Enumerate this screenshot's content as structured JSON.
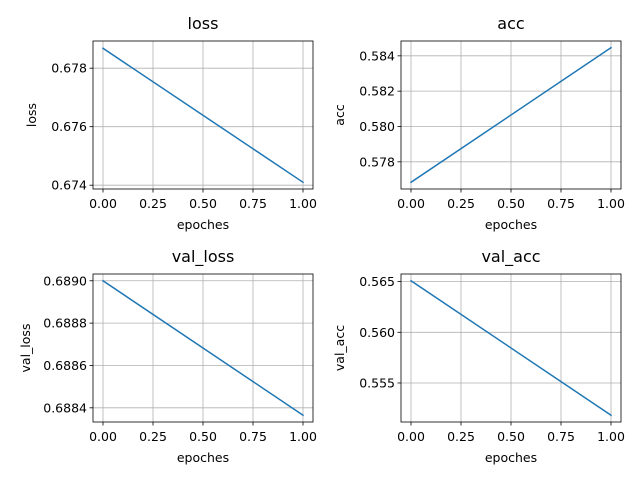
{
  "chart_data": [
    {
      "type": "line",
      "title": "loss",
      "xlabel": "epoches",
      "ylabel": "loss",
      "grid": true,
      "xlim": [
        -0.05,
        1.05
      ],
      "ylim": [
        0.67387,
        0.67893
      ],
      "xticks": [
        0.0,
        0.25,
        0.5,
        0.75,
        1.0
      ],
      "xtick_labels": [
        "0.00",
        "0.25",
        "0.50",
        "0.75",
        "1.00"
      ],
      "yticks": [
        0.674,
        0.676,
        0.678
      ],
      "ytick_labels": [
        "0.674",
        "0.676",
        "0.678"
      ],
      "series": [
        {
          "x": [
            0,
            1
          ],
          "y": [
            0.67868,
            0.6741
          ],
          "color": "#1f77b4"
        }
      ]
    },
    {
      "type": "line",
      "title": "acc",
      "xlabel": "epoches",
      "ylabel": "acc",
      "grid": true,
      "xlim": [
        -0.05,
        1.05
      ],
      "ylim": [
        0.57646,
        0.58484
      ],
      "xticks": [
        0.0,
        0.25,
        0.5,
        0.75,
        1.0
      ],
      "xtick_labels": [
        "0.00",
        "0.25",
        "0.50",
        "0.75",
        "1.00"
      ],
      "yticks": [
        0.578,
        0.58,
        0.582,
        0.584
      ],
      "ytick_labels": [
        "0.578",
        "0.580",
        "0.582",
        "0.584"
      ],
      "series": [
        {
          "x": [
            0,
            1
          ],
          "y": [
            0.57684,
            0.58446
          ],
          "color": "#1f77b4"
        }
      ]
    },
    {
      "type": "line",
      "title": "val_loss",
      "xlabel": "epoches",
      "ylabel": "val_loss",
      "grid": true,
      "xlim": [
        -0.05,
        1.05
      ],
      "ylim": [
        0.688333,
        0.689032
      ],
      "xticks": [
        0.0,
        0.25,
        0.5,
        0.75,
        1.0
      ],
      "xtick_labels": [
        "0.00",
        "0.25",
        "0.50",
        "0.75",
        "1.00"
      ],
      "yticks": [
        0.6884,
        0.6886,
        0.6888,
        0.689
      ],
      "ytick_labels": [
        "0.6884",
        "0.6886",
        "0.6888",
        "0.6890"
      ],
      "series": [
        {
          "x": [
            0,
            1
          ],
          "y": [
            0.689,
            0.688365
          ],
          "color": "#1f77b4"
        }
      ]
    },
    {
      "type": "line",
      "title": "val_acc",
      "xlabel": "epoches",
      "ylabel": "val_acc",
      "grid": true,
      "xlim": [
        -0.05,
        1.05
      ],
      "ylim": [
        0.55115,
        0.56575
      ],
      "xticks": [
        0.0,
        0.25,
        0.5,
        0.75,
        1.0
      ],
      "xtick_labels": [
        "0.00",
        "0.25",
        "0.50",
        "0.75",
        "1.00"
      ],
      "yticks": [
        0.555,
        0.56,
        0.565
      ],
      "ytick_labels": [
        "0.555",
        "0.560",
        "0.565"
      ],
      "series": [
        {
          "x": [
            0,
            1
          ],
          "y": [
            0.56508,
            0.55182
          ],
          "color": "#1f77b4"
        }
      ]
    }
  ]
}
